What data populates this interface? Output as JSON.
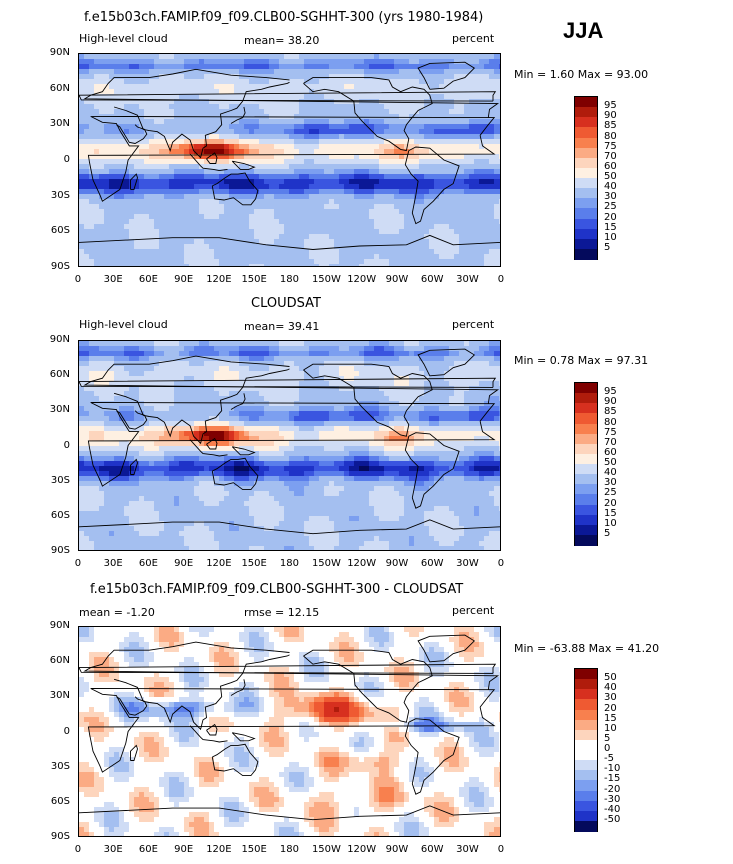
{
  "season": "JJA",
  "panels": [
    {
      "title": "f.e15b03ch.FAMIP.f09_f09.CLB00-SGHHT-300 (yrs 1980-1984)",
      "left_label": "High-level cloud",
      "center_label": "mean=  38.20",
      "right_label": "percent",
      "minmax": "Min =   1.60 Max =  93.00",
      "legend_levels": [
        "95",
        "90",
        "85",
        "80",
        "75",
        "70",
        "60",
        "50",
        "40",
        "30",
        "25",
        "20",
        "15",
        "10",
        "5"
      ]
    },
    {
      "title": "CLOUDSAT",
      "left_label": "High-level cloud",
      "center_label": "mean=  39.41",
      "right_label": "percent",
      "minmax": "Min =   0.78 Max =  97.31",
      "legend_levels": [
        "95",
        "90",
        "85",
        "80",
        "75",
        "70",
        "60",
        "50",
        "40",
        "30",
        "25",
        "20",
        "15",
        "10",
        "5"
      ]
    },
    {
      "title": "f.e15b03ch.FAMIP.f09_f09.CLB00-SGHHT-300 - CLOUDSAT",
      "left_label": "mean =  -1.20",
      "center_label": "rmse =  12.15",
      "right_label": "percent",
      "minmax": "Min = -63.88 Max =  41.20",
      "legend_levels": [
        "50",
        "40",
        "30",
        "20",
        "15",
        "10",
        "5",
        "0",
        "-5",
        "-10",
        "-15",
        "-20",
        "-30",
        "-40",
        "-50"
      ]
    }
  ],
  "lat_ticks": [
    "90N",
    "60N",
    "30N",
    "0",
    "30S",
    "60S",
    "90S"
  ],
  "lon_ticks": [
    "0",
    "30E",
    "60E",
    "90E",
    "120E",
    "150E",
    "180",
    "150W",
    "120W",
    "90W",
    "60W",
    "30W",
    "0"
  ],
  "colors": {
    "abs_scale": [
      "#7f0000",
      "#b01c0c",
      "#d7301f",
      "#ef5a32",
      "#f8804e",
      "#fbab84",
      "#fdd5bd",
      "#fef0e2",
      "#cfdcf5",
      "#a4bff0",
      "#7c9ff0",
      "#5a7eeb",
      "#3a55e0",
      "#1f33c8",
      "#0b1896",
      "#040a5c"
    ],
    "diff_scale": [
      "#7f0000",
      "#b01c0c",
      "#d7301f",
      "#ef5a32",
      "#f8804e",
      "#fbab84",
      "#fdd5bd",
      "#ffffff",
      "#ffffff",
      "#cfdcf5",
      "#a4bff0",
      "#7c9ff0",
      "#5a7eeb",
      "#3a55e0",
      "#1f33c8",
      "#040a5c"
    ]
  }
}
